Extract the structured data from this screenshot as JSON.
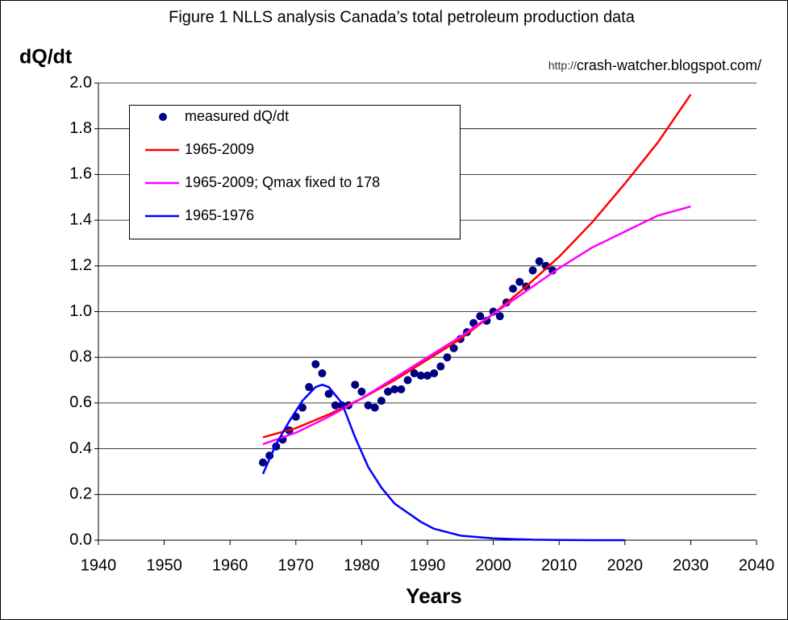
{
  "chart_data": {
    "type": "line",
    "title": "Figure 1 NLLS analysis Canada’s total petroleum production data",
    "y_label": "dQ/dt",
    "x_label": "Years",
    "source_prefix": "http://",
    "source": "crash-watcher.blogspot.com/",
    "xlim": [
      1940,
      2040
    ],
    "xticks": [
      1940,
      1950,
      1960,
      1970,
      1980,
      1990,
      2000,
      2010,
      2020,
      2030,
      2040
    ],
    "ylim": [
      0,
      2
    ],
    "yticks": [
      {
        "value": 0,
        "label": "0.0"
      },
      0.2,
      0.4,
      0.6,
      0.8,
      {
        "value": 1,
        "label": "1.0"
      },
      1.2,
      1.4,
      1.6,
      1.8,
      {
        "value": 2,
        "label": "2.0"
      }
    ],
    "grid": true,
    "legend": "upper left",
    "series": [
      {
        "name": "measured dQ/dt",
        "color": "#000080",
        "style": "markers",
        "x": [
          1965,
          1966,
          1967,
          1968,
          1969,
          1970,
          1971,
          1972,
          1973,
          1974,
          1975,
          1976,
          1977,
          1978,
          1979,
          1980,
          1981,
          1982,
          1983,
          1984,
          1985,
          1986,
          1987,
          1988,
          1989,
          1990,
          1991,
          1992,
          1993,
          1994,
          1995,
          1996,
          1997,
          1998,
          1999,
          2000,
          2001,
          2002,
          2003,
          2004,
          2005,
          2006,
          2007,
          2008,
          2009
        ],
        "values": [
          0.34,
          0.37,
          0.41,
          0.44,
          0.48,
          0.54,
          0.58,
          0.67,
          0.77,
          0.73,
          0.64,
          0.59,
          0.59,
          0.59,
          0.68,
          0.65,
          0.59,
          0.58,
          0.61,
          0.65,
          0.66,
          0.66,
          0.7,
          0.73,
          0.72,
          0.72,
          0.73,
          0.76,
          0.8,
          0.84,
          0.88,
          0.91,
          0.95,
          0.98,
          0.96,
          1.0,
          0.98,
          1.04,
          1.1,
          1.13,
          1.11,
          1.18,
          1.22,
          1.2,
          1.18
        ]
      },
      {
        "name": "1965-2009",
        "color": "#ff0000",
        "style": "line",
        "x": [
          1965,
          1970,
          1975,
          1980,
          1985,
          1990,
          1995,
          2000,
          2005,
          2010,
          2015,
          2020,
          2025,
          2030
        ],
        "values": [
          0.45,
          0.49,
          0.55,
          0.62,
          0.7,
          0.79,
          0.88,
          0.99,
          1.11,
          1.24,
          1.39,
          1.56,
          1.74,
          1.95
        ]
      },
      {
        "name": "1965-2009; Qmax fixed to 178",
        "color": "#ff00ff",
        "style": "line",
        "x": [
          1965,
          1970,
          1975,
          1980,
          1985,
          1990,
          1995,
          2000,
          2005,
          2010,
          2015,
          2020,
          2025,
          2030
        ],
        "values": [
          0.42,
          0.47,
          0.54,
          0.62,
          0.71,
          0.8,
          0.89,
          0.99,
          1.09,
          1.19,
          1.28,
          1.35,
          1.42,
          1.46
        ]
      },
      {
        "name": "1965-1976",
        "color": "#0000ff",
        "style": "line",
        "x": [
          1965,
          1967,
          1969,
          1971,
          1973,
          1974,
          1975,
          1977,
          1979,
          1981,
          1983,
          1985,
          1987,
          1989,
          1991,
          1993,
          1995,
          1997,
          2000,
          2003,
          2006,
          2010,
          2015,
          2020
        ],
        "values": [
          0.29,
          0.42,
          0.52,
          0.61,
          0.67,
          0.68,
          0.67,
          0.6,
          0.45,
          0.32,
          0.23,
          0.16,
          0.12,
          0.08,
          0.05,
          0.035,
          0.02,
          0.015,
          0.008,
          0.005,
          0.002,
          0.001,
          0,
          0
        ]
      }
    ]
  }
}
